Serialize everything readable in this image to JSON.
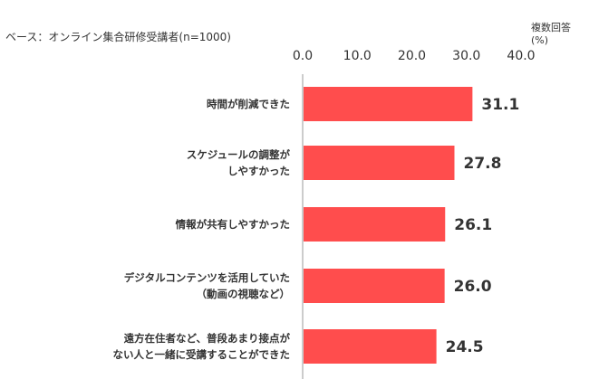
{
  "base_note": "ベース：オンライン集合研修受講者(n=1000)",
  "unit_note": [
    "複数回答",
    "(%)"
  ],
  "colors": {
    "bar": "#ff4d4d",
    "axis": "#999999",
    "text": "#333333"
  },
  "chart_data": {
    "type": "bar",
    "orientation": "horizontal",
    "xlim": [
      0,
      40
    ],
    "ticks": [
      "0.0",
      "10.0",
      "20.0",
      "30.0",
      "40.0"
    ],
    "tick_values": [
      0,
      10,
      20,
      30,
      40
    ],
    "categories": [
      [
        "時間が削減できた"
      ],
      [
        "スケジュールの調整が",
        "しやすかった"
      ],
      [
        "情報が共有しやすかった"
      ],
      [
        "デジタルコンテンツを活用していた",
        "（動画の視聴など）"
      ],
      [
        "遠方在住者など、普段あまり接点が",
        "ない人と一緒に受講することができた"
      ]
    ],
    "values": [
      31.1,
      27.8,
      26.1,
      26.0,
      24.5
    ],
    "value_labels": [
      "31.1",
      "27.8",
      "26.1",
      "26.0",
      "24.5"
    ]
  }
}
